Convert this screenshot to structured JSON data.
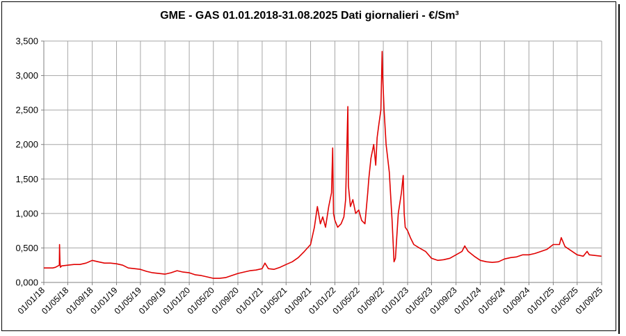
{
  "chart_data": {
    "type": "line",
    "title": "GME - GAS 01.01.2018-31.08.2025 Dati giornalieri - €/Sm³",
    "xlabel": "",
    "ylabel": "",
    "ylim": [
      0,
      3.5
    ],
    "xlim": [
      "2018-01-01",
      "2025-09-01"
    ],
    "grid": true,
    "legend": "none",
    "line_color": "#e00000",
    "yticks": [
      "0,000",
      "0,500",
      "1,000",
      "1,500",
      "2,000",
      "2,500",
      "3,000",
      "3,500"
    ],
    "xticks": [
      "01/01/18",
      "01/05/18",
      "01/09/18",
      "01/01/19",
      "01/05/19",
      "01/09/19",
      "01/01/20",
      "01/05/20",
      "01/09/20",
      "01/01/21",
      "01/05/21",
      "01/09/21",
      "01/01/22",
      "01/05/22",
      "01/09/22",
      "01/01/23",
      "01/05/23",
      "01/09/23",
      "01/01/24",
      "01/05/24",
      "01/09/24",
      "01/01/25",
      "01/05/25",
      "01/09/25"
    ],
    "series": [
      {
        "x": [
          "2018-01-01",
          "2018-02-15",
          "2018-03-01",
          "2018-03-20",
          "2018-03-21",
          "2018-03-23",
          "2018-03-25",
          "2018-04-01",
          "2018-05-01",
          "2018-06-01",
          "2018-07-01",
          "2018-08-01",
          "2018-09-01",
          "2018-10-01",
          "2018-11-01",
          "2018-12-01",
          "2019-01-01",
          "2019-02-01",
          "2019-03-01",
          "2019-04-01",
          "2019-05-01",
          "2019-06-01",
          "2019-07-01",
          "2019-08-01",
          "2019-09-01",
          "2019-10-01",
          "2019-11-01",
          "2019-12-01",
          "2020-01-01",
          "2020-02-01",
          "2020-03-01",
          "2020-04-01",
          "2020-05-01",
          "2020-06-01",
          "2020-07-01",
          "2020-08-01",
          "2020-09-01",
          "2020-10-01",
          "2020-11-01",
          "2020-12-01",
          "2021-01-01",
          "2021-01-15",
          "2021-02-01",
          "2021-03-01",
          "2021-04-01",
          "2021-05-01",
          "2021-06-01",
          "2021-07-01",
          "2021-08-01",
          "2021-09-01",
          "2021-09-20",
          "2021-10-05",
          "2021-10-20",
          "2021-11-01",
          "2021-11-15",
          "2021-12-01",
          "2021-12-15",
          "2021-12-21",
          "2021-12-25",
          "2022-01-01",
          "2022-01-15",
          "2022-02-01",
          "2022-02-15",
          "2022-02-24",
          "2022-03-07",
          "2022-03-10",
          "2022-03-20",
          "2022-04-01",
          "2022-04-15",
          "2022-05-01",
          "2022-05-15",
          "2022-06-01",
          "2022-06-15",
          "2022-06-20",
          "2022-07-01",
          "2022-07-15",
          "2022-07-25",
          "2022-08-01",
          "2022-08-10",
          "2022-08-20",
          "2022-08-26",
          "2022-08-29",
          "2022-09-05",
          "2022-09-15",
          "2022-10-01",
          "2022-10-15",
          "2022-10-25",
          "2022-11-01",
          "2022-11-15",
          "2022-12-01",
          "2022-12-10",
          "2022-12-15",
          "2022-12-20",
          "2023-01-01",
          "2023-01-15",
          "2023-02-01",
          "2023-03-01",
          "2023-04-01",
          "2023-05-01",
          "2023-06-01",
          "2023-07-01",
          "2023-08-01",
          "2023-09-01",
          "2023-10-01",
          "2023-10-15",
          "2023-11-01",
          "2023-12-01",
          "2024-01-01",
          "2024-02-01",
          "2024-03-01",
          "2024-04-01",
          "2024-05-01",
          "2024-06-01",
          "2024-07-01",
          "2024-08-01",
          "2024-09-01",
          "2024-10-01",
          "2024-11-01",
          "2024-12-01",
          "2025-01-01",
          "2025-02-01",
          "2025-02-10",
          "2025-03-01",
          "2025-04-01",
          "2025-05-01",
          "2025-06-01",
          "2025-06-20",
          "2025-07-01",
          "2025-08-01",
          "2025-08-31"
        ],
        "values": [
          0.21,
          0.21,
          0.22,
          0.25,
          0.55,
          0.3,
          0.22,
          0.24,
          0.25,
          0.26,
          0.26,
          0.28,
          0.32,
          0.3,
          0.28,
          0.28,
          0.27,
          0.25,
          0.21,
          0.2,
          0.19,
          0.16,
          0.14,
          0.13,
          0.12,
          0.14,
          0.17,
          0.15,
          0.14,
          0.11,
          0.1,
          0.08,
          0.06,
          0.06,
          0.07,
          0.1,
          0.13,
          0.15,
          0.17,
          0.18,
          0.2,
          0.28,
          0.2,
          0.19,
          0.22,
          0.26,
          0.3,
          0.36,
          0.45,
          0.55,
          0.8,
          1.1,
          0.85,
          0.95,
          0.8,
          1.1,
          1.3,
          1.95,
          1.0,
          0.9,
          0.8,
          0.85,
          0.95,
          1.2,
          2.55,
          1.4,
          1.1,
          1.2,
          1.0,
          1.05,
          0.9,
          0.85,
          1.3,
          1.5,
          1.8,
          2.0,
          1.7,
          2.1,
          2.3,
          2.5,
          3.35,
          3.0,
          2.5,
          2.0,
          1.6,
          0.9,
          0.3,
          0.35,
          1.0,
          1.3,
          1.55,
          1.0,
          0.8,
          0.75,
          0.65,
          0.55,
          0.5,
          0.45,
          0.35,
          0.32,
          0.33,
          0.35,
          0.4,
          0.45,
          0.53,
          0.45,
          0.38,
          0.32,
          0.3,
          0.29,
          0.3,
          0.34,
          0.36,
          0.37,
          0.4,
          0.4,
          0.42,
          0.45,
          0.48,
          0.55,
          0.55,
          0.65,
          0.52,
          0.46,
          0.4,
          0.38,
          0.45,
          0.4,
          0.39,
          0.38
        ]
      }
    ]
  }
}
